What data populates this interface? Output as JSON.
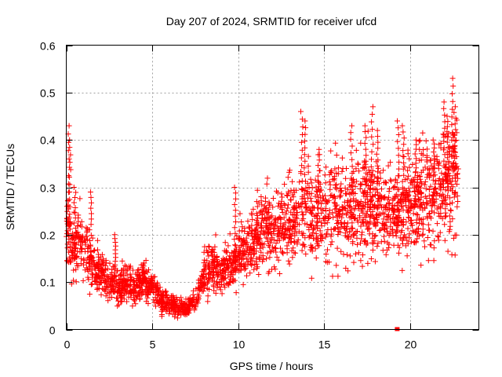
{
  "chart_data": {
    "type": "scatter",
    "title": "Day 207 of 2024, SRMTID for receiver ufcd",
    "xlabel": "GPS time / hours",
    "ylabel": "SRMTID / TECUs",
    "xlim": [
      0,
      24
    ],
    "ylim": [
      0,
      0.6
    ],
    "xticks": [
      0,
      5,
      10,
      15,
      20
    ],
    "xtick_labels": [
      "0",
      "5",
      "10",
      "15",
      "20"
    ],
    "yticks": [
      0,
      0.1,
      0.2,
      0.3,
      0.4,
      0.5,
      0.6
    ],
    "ytick_labels": [
      "0",
      "0.1",
      "0.2",
      "0.3",
      "0.4",
      "0.5",
      "0.6"
    ],
    "grid": true,
    "marker": "plus",
    "color": "#ff0000",
    "outlier": {
      "x": 19.25,
      "y": 0.0
    },
    "series": [
      {
        "name": "SRMTID",
        "trend": [
          {
            "x": 0.0,
            "y": 0.22
          },
          {
            "x": 0.5,
            "y": 0.16
          },
          {
            "x": 1.0,
            "y": 0.19
          },
          {
            "x": 1.5,
            "y": 0.13
          },
          {
            "x": 2.0,
            "y": 0.12
          },
          {
            "x": 2.5,
            "y": 0.11
          },
          {
            "x": 3.0,
            "y": 0.09
          },
          {
            "x": 3.5,
            "y": 0.1
          },
          {
            "x": 4.0,
            "y": 0.09
          },
          {
            "x": 4.5,
            "y": 0.1
          },
          {
            "x": 5.0,
            "y": 0.09
          },
          {
            "x": 5.5,
            "y": 0.06
          },
          {
            "x": 6.0,
            "y": 0.055
          },
          {
            "x": 6.5,
            "y": 0.05
          },
          {
            "x": 7.0,
            "y": 0.045
          },
          {
            "x": 7.5,
            "y": 0.06
          },
          {
            "x": 8.0,
            "y": 0.12
          },
          {
            "x": 8.5,
            "y": 0.13
          },
          {
            "x": 9.0,
            "y": 0.12
          },
          {
            "x": 9.5,
            "y": 0.13
          },
          {
            "x": 10.0,
            "y": 0.15
          },
          {
            "x": 10.5,
            "y": 0.17
          },
          {
            "x": 11.0,
            "y": 0.19
          },
          {
            "x": 11.5,
            "y": 0.21
          },
          {
            "x": 12.0,
            "y": 0.2
          },
          {
            "x": 12.5,
            "y": 0.22
          },
          {
            "x": 13.0,
            "y": 0.22
          },
          {
            "x": 13.5,
            "y": 0.24
          },
          {
            "x": 14.0,
            "y": 0.26
          },
          {
            "x": 14.5,
            "y": 0.23
          },
          {
            "x": 15.0,
            "y": 0.24
          },
          {
            "x": 15.5,
            "y": 0.25
          },
          {
            "x": 16.0,
            "y": 0.25
          },
          {
            "x": 16.5,
            "y": 0.24
          },
          {
            "x": 17.0,
            "y": 0.26
          },
          {
            "x": 17.5,
            "y": 0.27
          },
          {
            "x": 18.0,
            "y": 0.26
          },
          {
            "x": 18.5,
            "y": 0.25
          },
          {
            "x": 19.0,
            "y": 0.24
          },
          {
            "x": 19.5,
            "y": 0.26
          },
          {
            "x": 20.0,
            "y": 0.26
          },
          {
            "x": 20.5,
            "y": 0.28
          },
          {
            "x": 21.0,
            "y": 0.29
          },
          {
            "x": 21.5,
            "y": 0.29
          },
          {
            "x": 22.0,
            "y": 0.3
          },
          {
            "x": 22.5,
            "y": 0.32
          },
          {
            "x": 22.8,
            "y": 0.3
          }
        ],
        "peaks": [
          {
            "x": 0.15,
            "y": 0.43
          },
          {
            "x": 0.2,
            "y": 0.4
          },
          {
            "x": 0.5,
            "y": 0.3
          },
          {
            "x": 1.4,
            "y": 0.29
          },
          {
            "x": 2.85,
            "y": 0.2
          },
          {
            "x": 4.5,
            "y": 0.14
          },
          {
            "x": 9.8,
            "y": 0.3
          },
          {
            "x": 13.7,
            "y": 0.46
          },
          {
            "x": 13.9,
            "y": 0.44
          },
          {
            "x": 14.7,
            "y": 0.38
          },
          {
            "x": 16.6,
            "y": 0.43
          },
          {
            "x": 17.4,
            "y": 0.43
          },
          {
            "x": 17.8,
            "y": 0.47
          },
          {
            "x": 18.1,
            "y": 0.42
          },
          {
            "x": 19.3,
            "y": 0.44
          },
          {
            "x": 19.6,
            "y": 0.43
          },
          {
            "x": 20.3,
            "y": 0.4
          },
          {
            "x": 21.4,
            "y": 0.4
          },
          {
            "x": 22.0,
            "y": 0.48
          },
          {
            "x": 22.2,
            "y": 0.45
          },
          {
            "x": 22.45,
            "y": 0.53
          },
          {
            "x": 22.6,
            "y": 0.47
          }
        ]
      }
    ]
  }
}
